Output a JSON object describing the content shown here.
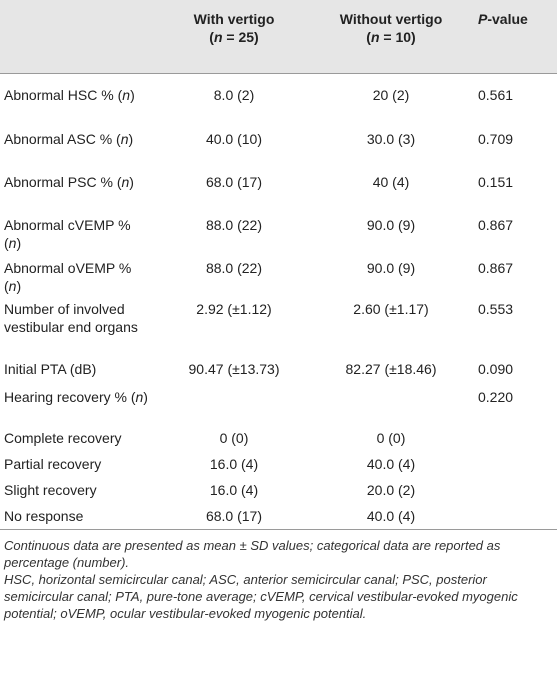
{
  "header": {
    "col1_line1": "With vertigo",
    "col1_n_open": "(",
    "col1_n_sym": "n",
    "col1_n_rest": " = 25)",
    "col2_line1": "Without vertigo",
    "col2_n_open": "(",
    "col2_n_sym": "n",
    "col2_n_rest": " = 10)",
    "pvalue_sym": "P",
    "pvalue_rest": "-value"
  },
  "rows": [
    {
      "label": "Abnormal HSC % (",
      "label_n": "n",
      "label_end": ")",
      "with": "8.0 (2)",
      "without": "20 (2)",
      "p": "0.561"
    },
    {
      "label": "Abnormal ASC % (",
      "label_n": "n",
      "label_end": ")",
      "with": "40.0 (10)",
      "without": "30.0 (3)",
      "p": "0.709"
    },
    {
      "label": "Abnormal PSC % (",
      "label_n": "n",
      "label_end": ")",
      "with": "68.0 (17)",
      "without": "40 (4)",
      "p": "0.151"
    },
    {
      "label": "Abnormal cVEMP % (",
      "label_n": "n",
      "label_end": ")",
      "with": "88.0 (22)",
      "without": "90.0 (9)",
      "p": "0.867"
    },
    {
      "label": "Abnormal oVEMP % (",
      "label_n": "n",
      "label_end": ")",
      "with": "88.0 (22)",
      "without": "90.0 (9)",
      "p": "0.867"
    },
    {
      "label": "Number of involved vestibular end organs",
      "label_n": "",
      "label_end": "",
      "with": "2.92 (±1.12)",
      "without": "2.60 (±1.17)",
      "p": "0.553"
    },
    {
      "label": "Initial PTA (dB)",
      "label_n": "",
      "label_end": "",
      "with": "90.47 (±13.73)",
      "without": "82.27 (±18.46)",
      "p": "0.090"
    },
    {
      "label": "Hearing recovery % (",
      "label_n": "n",
      "label_end": ")",
      "with": "",
      "without": "",
      "p": "0.220"
    },
    {
      "label": "Complete recovery",
      "label_n": "",
      "label_end": "",
      "with": "0 (0)",
      "without": "0 (0)",
      "p": ""
    },
    {
      "label": "Partial recovery",
      "label_n": "",
      "label_end": "",
      "with": "16.0 (4)",
      "without": "40.0 (4)",
      "p": ""
    },
    {
      "label": "Slight recovery",
      "label_n": "",
      "label_end": "",
      "with": "16.0 (4)",
      "without": "20.0 (2)",
      "p": ""
    },
    {
      "label": "No response",
      "label_n": "",
      "label_end": "",
      "with": "68.0 (17)",
      "without": "40.0 (4)",
      "p": ""
    }
  ],
  "footnotes": {
    "line1": "Continuous data are presented as mean ± SD values; categorical data are reported as percentage (number).",
    "line2": "HSC, horizontal semicircular canal; ASC, anterior semicircular canal; PSC, posterior semicircular canal; PTA, pure-tone average; cVEMP, cervical vestibular-evoked myogenic potential; oVEMP, ocular vestibular-evoked myogenic potential."
  }
}
